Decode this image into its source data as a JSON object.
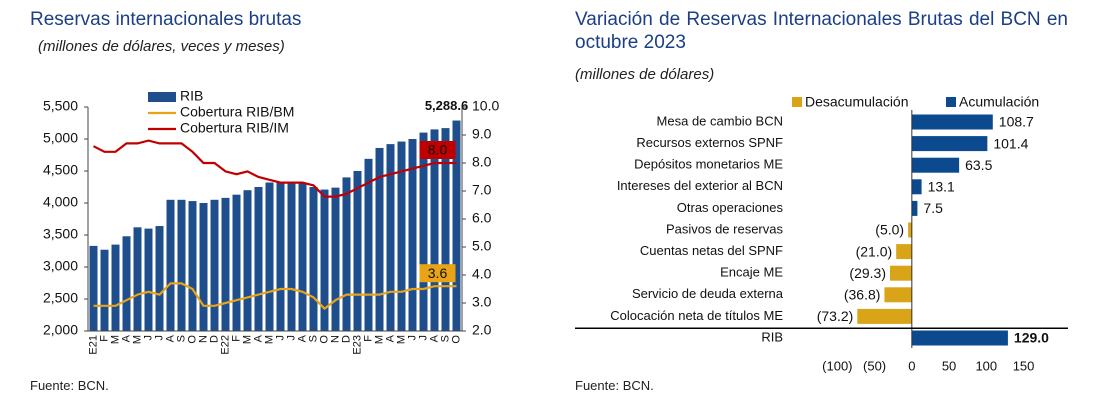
{
  "chart_data": [
    {
      "type": "combo",
      "title": "Reservas internacionales brutas",
      "subtitle": "(millones de dólares, veces y meses)",
      "source": "Fuente: BCN.",
      "categories": [
        "E21",
        "F",
        "M",
        "A",
        "M",
        "J",
        "J",
        "A",
        "S",
        "O",
        "N",
        "D",
        "E22",
        "F",
        "M",
        "A",
        "M",
        "J",
        "J",
        "A",
        "S",
        "O",
        "N",
        "D",
        "E23",
        "F",
        "M",
        "A",
        "M",
        "J",
        "J",
        "A",
        "S",
        "O"
      ],
      "ylim": [
        2000,
        5500
      ],
      "yticks": [
        {
          "value": 2000,
          "label": "2,000"
        },
        {
          "value": 2500,
          "label": "2,500"
        },
        {
          "value": 3000,
          "label": "3,000"
        },
        {
          "value": 3500,
          "label": "3,500"
        },
        {
          "value": 4000,
          "label": "4,000"
        },
        {
          "value": 4500,
          "label": "4,500"
        },
        {
          "value": 5000,
          "label": "5,000"
        },
        {
          "value": 5500,
          "label": "5,500"
        }
      ],
      "y2lim": [
        2,
        10
      ],
      "y2ticks": [
        {
          "value": 2,
          "label": "2.0"
        },
        {
          "value": 3,
          "label": "3.0"
        },
        {
          "value": 4,
          "label": "4.0"
        },
        {
          "value": 5,
          "label": "5.0"
        },
        {
          "value": 6,
          "label": "6.0"
        },
        {
          "value": 7,
          "label": "7.0"
        },
        {
          "value": 8,
          "label": "8.0"
        },
        {
          "value": 9,
          "label": "9.0"
        },
        {
          "value": 10,
          "label": "10.0"
        }
      ],
      "legend": "upper left",
      "series": [
        {
          "name": "RIB",
          "type": "bar",
          "color": "#1f4e8c",
          "values": [
            3330,
            3270,
            3350,
            3480,
            3620,
            3600,
            3640,
            4050,
            4050,
            4030,
            4000,
            4050,
            4080,
            4130,
            4200,
            4250,
            4320,
            4330,
            4320,
            4320,
            4250,
            4210,
            4240,
            4400,
            4500,
            4690,
            4860,
            4920,
            4960,
            5000,
            5100,
            5150,
            5170,
            5288.6
          ],
          "value_labels": [
            null,
            null,
            null,
            null,
            null,
            null,
            null,
            null,
            null,
            null,
            null,
            null,
            null,
            null,
            null,
            null,
            null,
            null,
            null,
            null,
            null,
            null,
            null,
            null,
            null,
            null,
            null,
            null,
            null,
            null,
            null,
            null,
            null,
            "5,288.6"
          ]
        },
        {
          "name": "Cobertura RIB/BM",
          "type": "line",
          "axis": "y2",
          "color": "#e8a317",
          "values": [
            2.9,
            2.9,
            2.9,
            3.1,
            3.3,
            3.4,
            3.3,
            3.7,
            3.7,
            3.5,
            2.9,
            2.9,
            3.0,
            3.1,
            3.2,
            3.3,
            3.4,
            3.5,
            3.5,
            3.4,
            3.2,
            2.8,
            3.1,
            3.3,
            3.3,
            3.3,
            3.3,
            3.4,
            3.4,
            3.5,
            3.5,
            3.6,
            3.6,
            3.6
          ],
          "value_labels": [
            null,
            null,
            null,
            null,
            null,
            null,
            null,
            null,
            null,
            null,
            null,
            null,
            null,
            null,
            null,
            null,
            null,
            null,
            null,
            null,
            null,
            null,
            null,
            null,
            null,
            null,
            null,
            null,
            null,
            null,
            null,
            null,
            null,
            "3.6"
          ]
        },
        {
          "name": "Cobertura RIB/IM",
          "type": "line",
          "axis": "y2",
          "color": "#c00000",
          "values": [
            8.6,
            8.4,
            8.4,
            8.7,
            8.7,
            8.8,
            8.7,
            8.7,
            8.7,
            8.4,
            8.0,
            8.0,
            7.7,
            7.6,
            7.7,
            7.5,
            7.4,
            7.3,
            7.3,
            7.3,
            7.2,
            6.8,
            6.8,
            6.9,
            7.1,
            7.3,
            7.5,
            7.6,
            7.7,
            7.8,
            7.9,
            8.0,
            8.0,
            8.0
          ],
          "value_labels": [
            null,
            null,
            null,
            null,
            null,
            null,
            null,
            null,
            null,
            null,
            null,
            null,
            null,
            null,
            null,
            null,
            null,
            null,
            null,
            null,
            null,
            null,
            null,
            null,
            null,
            null,
            null,
            null,
            null,
            null,
            null,
            null,
            null,
            "8.0"
          ]
        }
      ]
    },
    {
      "type": "barh",
      "title": "Variación de Reservas Internacionales Brutas del BCN en octubre 2023",
      "subtitle": "(millones de dólares)",
      "source": "Fuente: BCN.",
      "categories": [
        "Mesa de cambio BCN",
        "Recursos externos SPNF",
        "Depósitos monetarios ME",
        "Intereses del exterior al BCN",
        "Otras operaciones",
        "Pasivos de reservas",
        "Cuentas netas del SPNF",
        "Encaje ME",
        "Servicio de deuda externa",
        "Colocación neta de títulos ME",
        "RIB"
      ],
      "xlim": [
        -130,
        160
      ],
      "xticks": [
        {
          "value": -100,
          "label": "(100)"
        },
        {
          "value": -50,
          "label": "(50)"
        },
        0,
        50,
        100,
        150
      ],
      "legend": "top",
      "series": [
        {
          "name": "Desacumulación",
          "color": "#d9a418",
          "values": [
            null,
            null,
            null,
            null,
            null,
            -5.0,
            -21.0,
            -29.3,
            -36.8,
            -73.2,
            null
          ],
          "value_labels": [
            null,
            null,
            null,
            null,
            null,
            "(5.0)",
            "(21.0)",
            "(29.3)",
            "(36.8)",
            "(73.2)",
            null
          ]
        },
        {
          "name": "Acumulación",
          "color": "#0b4a8e",
          "values": [
            108.7,
            101.4,
            63.5,
            13.1,
            7.5,
            null,
            null,
            null,
            null,
            null,
            129.0
          ],
          "value_labels": [
            "108.7",
            "101.4",
            "63.5",
            "13.1",
            "7.5",
            null,
            null,
            null,
            null,
            null,
            "129.0"
          ]
        }
      ]
    }
  ]
}
